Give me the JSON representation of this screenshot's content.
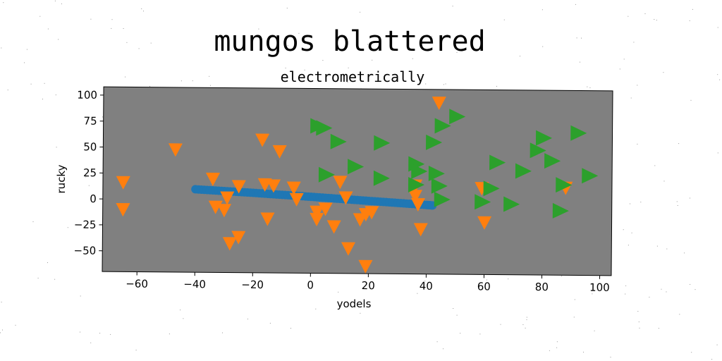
{
  "chart_data": {
    "type": "scatter",
    "title": "mungos blattered",
    "subtitle": "electrometrically",
    "xlabel": "yodels",
    "ylabel": "rucky",
    "xlim": [
      -72,
      104
    ],
    "ylim": [
      -70,
      108
    ],
    "xticks": [
      -60,
      -40,
      -20,
      0,
      20,
      40,
      60,
      80,
      100
    ],
    "yticks": [
      -50,
      -25,
      0,
      25,
      50,
      75,
      100
    ],
    "grid": false,
    "legend": "none",
    "colors": {
      "plot_background": "#808080",
      "series_line": "#1f77b4",
      "series_down": "#ff7f0e",
      "series_right": "#2ca02c"
    },
    "series": [
      {
        "marker": "circle",
        "x": [
          -40,
          -36,
          -32,
          -28,
          -24,
          -20,
          -16,
          -12,
          -8,
          -4,
          0,
          4,
          8,
          12,
          16,
          20,
          24,
          28,
          32,
          36,
          40,
          42
        ],
        "y": [
          10,
          9.4,
          8.8,
          8.2,
          7.6,
          7,
          6.3,
          5.6,
          5,
          4.3,
          3.6,
          2.9,
          2.2,
          1.5,
          0.8,
          0.1,
          -0.6,
          -1.3,
          -2,
          -2.7,
          -3.4,
          -3.8
        ]
      },
      {
        "marker": "triangle-down",
        "x": [
          -65,
          -65,
          -47,
          -34,
          -33,
          -30,
          -29,
          -28,
          -25,
          -25,
          -17,
          -16,
          -15,
          -13,
          -11,
          -6,
          -5,
          2,
          2,
          5,
          8,
          10,
          12,
          13,
          17,
          19,
          19,
          21,
          36,
          36,
          37,
          38,
          44,
          59,
          60,
          88
        ],
        "y": [
          16,
          -10,
          48,
          20,
          -7,
          -10,
          2,
          -42,
          13,
          -36,
          58,
          15,
          -18,
          14,
          47,
          12,
          1,
          -18,
          -11,
          -8,
          -25,
          18,
          3,
          -46,
          -18,
          -13,
          -63,
          -11,
          15,
          5,
          -3,
          -27,
          95,
          13,
          -20,
          14
        ]
      },
      {
        "marker": "triangle-right",
        "x": [
          2,
          4,
          5,
          9,
          15,
          24,
          24,
          36,
          36,
          37,
          42,
          43,
          44,
          45,
          45,
          50,
          59,
          62,
          64,
          69,
          73,
          78,
          80,
          83,
          86,
          87,
          92,
          96
        ],
        "y": [
          72,
          70,
          25,
          57,
          33,
          56,
          22,
          36,
          16,
          29,
          57,
          27,
          15,
          2,
          73,
          82,
          0,
          13,
          38,
          -2,
          30,
          50,
          62,
          40,
          -8,
          17,
          67,
          26
        ]
      }
    ]
  }
}
